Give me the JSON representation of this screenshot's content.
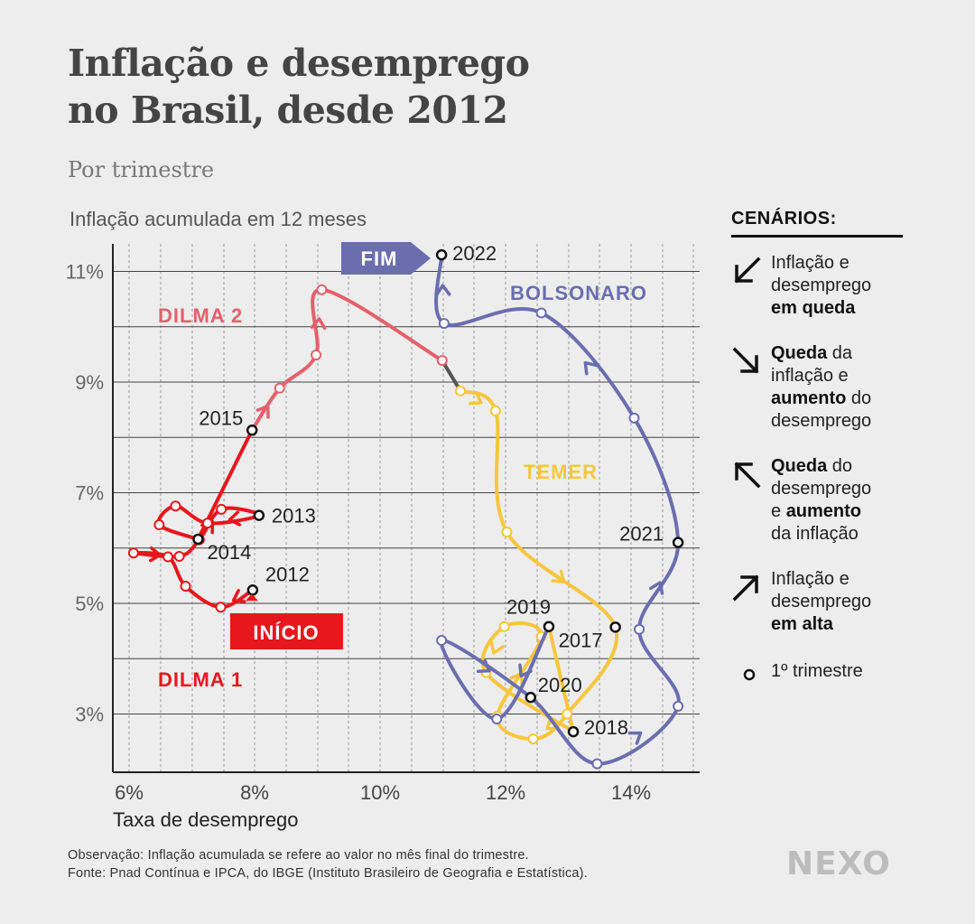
{
  "title_line1": "Inflação e desemprego",
  "title_line2": "no Brasil, desde 2012",
  "subtitle": "Por trimestre",
  "legend": {
    "title": "CENÁRIOS:",
    "items": [
      {
        "icon": "arrow-down-left-icon",
        "parts": [
          {
            "t": "Inflação e",
            "b": false
          },
          {
            "br": true
          },
          {
            "t": "desemprego",
            "b": false
          },
          {
            "br": true
          },
          {
            "t": "em queda",
            "b": true
          }
        ]
      },
      {
        "icon": "arrow-down-right-icon",
        "parts": [
          {
            "t": "Queda",
            "b": true
          },
          {
            "t": " da",
            "b": false
          },
          {
            "br": true
          },
          {
            "t": "inflação e",
            "b": false
          },
          {
            "br": true
          },
          {
            "t": "aumento",
            "b": true
          },
          {
            "t": " do",
            "b": false
          },
          {
            "br": true
          },
          {
            "t": "desemprego",
            "b": false
          }
        ]
      },
      {
        "icon": "arrow-up-left-icon",
        "parts": [
          {
            "t": "Queda",
            "b": true
          },
          {
            "t": " do",
            "b": false
          },
          {
            "br": true
          },
          {
            "t": "desemprego",
            "b": false
          },
          {
            "br": true
          },
          {
            "t": "e ",
            "b": false
          },
          {
            "t": "aumento",
            "b": true
          },
          {
            "br": true
          },
          {
            "t": "da inflação",
            "b": false
          }
        ]
      },
      {
        "icon": "arrow-up-right-icon",
        "parts": [
          {
            "t": "Inflação e",
            "b": false
          },
          {
            "br": true
          },
          {
            "t": "desemprego",
            "b": false
          },
          {
            "br": true
          },
          {
            "t": "em alta",
            "b": true
          }
        ]
      }
    ],
    "marker_label": "1º trimestre"
  },
  "footnote": {
    "line1": "Observação: Inflação acumulada se refere ao valor no mês final do trimestre.",
    "line2": "Fonte: Pnad Contínua e IPCA, do IBGE (Instituto Brasileiro de Geografia e Estatística)."
  },
  "logo": "NEXO",
  "colors": {
    "dilma1": "#e8161d",
    "dilma2": "#e4606b",
    "temer": "#f7c63d",
    "bolsonaro": "#6a6eae",
    "transition": "#555555",
    "background": "#ededed"
  },
  "chart_data": {
    "type": "line",
    "xlabel": "Taxa de desemprego",
    "ylabel": "Inflação acumulada em 12 meses",
    "xlim": [
      6,
      14.8
    ],
    "ylim": [
      2,
      11.3
    ],
    "xticks": [
      6,
      8,
      10,
      12,
      14
    ],
    "xtick_labels": [
      "6%",
      "8%",
      "10%",
      "12%",
      "14%"
    ],
    "yticks": [
      3,
      5,
      7,
      9,
      11
    ],
    "ytick_labels": [
      "3%",
      "5%",
      "7%",
      "9%",
      "11%"
    ],
    "grid": true,
    "series": [
      {
        "name": "DILMA 1",
        "key": "dilma1",
        "points": [
          [
            7.97,
            5.24
          ],
          [
            7.46,
            4.93
          ],
          [
            6.9,
            5.31
          ],
          [
            6.62,
            5.84
          ],
          [
            6.07,
            5.91
          ],
          [
            6.8,
            5.85
          ],
          [
            7.12,
            6.15
          ],
          [
            7.47,
            6.7
          ],
          [
            8.07,
            6.59
          ],
          [
            7.25,
            6.45
          ],
          [
            6.74,
            6.76
          ],
          [
            6.48,
            6.42
          ],
          [
            7.1,
            6.16
          ]
        ],
        "firsts": [
          {
            "i": 0,
            "year": "2012"
          },
          {
            "i": 8,
            "year": "2013"
          },
          {
            "i": 12,
            "year": "2014"
          }
        ]
      },
      {
        "name": "DILMA 2",
        "key": "dilma2",
        "points": [
          [
            7.96,
            8.13
          ],
          [
            8.4,
            8.89
          ],
          [
            8.98,
            9.49
          ],
          [
            9.07,
            10.67
          ],
          [
            10.99,
            9.39
          ]
        ],
        "firsts": [
          {
            "i": 0,
            "year": "2015"
          }
        ]
      },
      {
        "name": "TEMER",
        "key": "temer",
        "points": [
          [
            11.28,
            8.84
          ],
          [
            11.84,
            8.48
          ],
          [
            12.02,
            6.29
          ],
          [
            13.75,
            4.57
          ],
          [
            12.98,
            3.0
          ],
          [
            12.44,
            2.55
          ],
          [
            11.87,
            2.96
          ],
          [
            12.57,
            4.4
          ],
          [
            11.98,
            4.58
          ],
          [
            11.69,
            3.75
          ],
          [
            13.08,
            2.68
          ]
        ],
        "firsts": [
          {
            "i": 3,
            "year": "2017"
          },
          {
            "i": 10,
            "year": "2018"
          }
        ]
      },
      {
        "name": "BOLSONARO",
        "key": "bolsonaro",
        "points": [
          [
            12.69,
            4.58
          ],
          [
            11.86,
            2.91
          ],
          [
            10.98,
            4.33
          ],
          [
            12.4,
            3.3
          ],
          [
            13.46,
            2.1
          ],
          [
            14.75,
            3.14
          ],
          [
            14.13,
            4.53
          ],
          [
            14.75,
            6.1
          ],
          [
            14.05,
            8.35
          ],
          [
            12.57,
            10.25
          ],
          [
            11.02,
            10.06
          ],
          [
            10.98,
            11.3
          ]
        ],
        "firsts": [
          {
            "i": 0,
            "year": "2019"
          },
          {
            "i": 3,
            "year": "2020"
          },
          {
            "i": 7,
            "year": "2021"
          },
          {
            "i": 11,
            "year": "2022"
          }
        ]
      }
    ],
    "annotations": {
      "start_label": "INÍCIO",
      "end_label": "FIM"
    }
  }
}
